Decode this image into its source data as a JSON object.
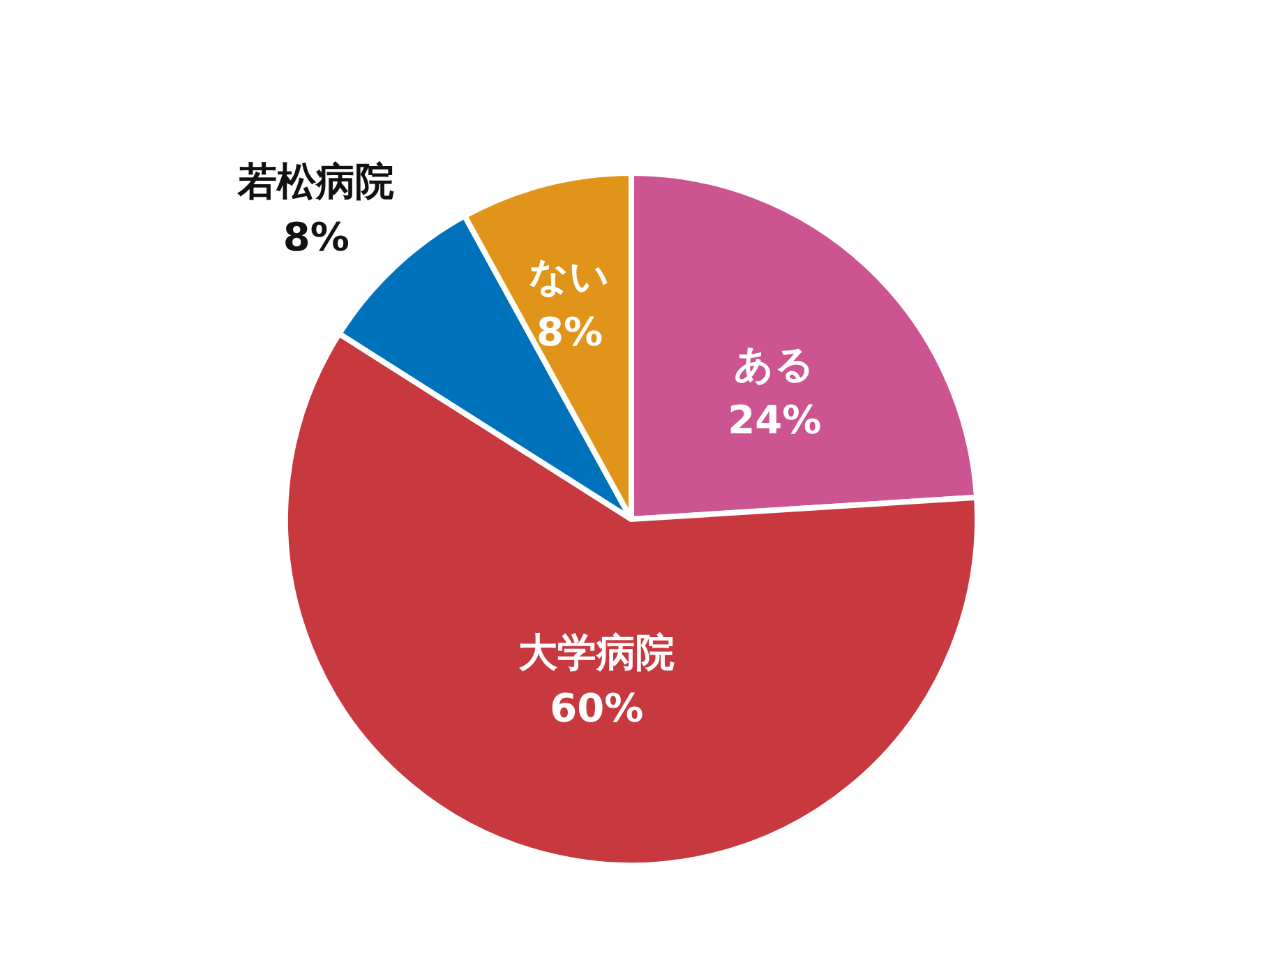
{
  "chart_data": {
    "type": "pie",
    "categories": [
      "ある",
      "大学病院",
      "若松病院",
      "ない"
    ],
    "values": [
      24,
      60,
      8,
      8
    ],
    "value_labels": [
      "24%",
      "60%",
      "8%",
      "8%"
    ],
    "colors": [
      "#cc5490",
      "#c8393f",
      "#0072bc",
      "#e0951a"
    ]
  }
}
